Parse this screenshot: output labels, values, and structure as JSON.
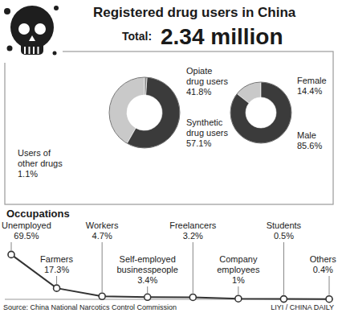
{
  "header": {
    "title": "Registered drug users in China",
    "total_label": "Total:",
    "total_value": "2.34 million"
  },
  "chart_data": [
    {
      "type": "pie",
      "categories": [
        "Opiate drug users",
        "Synthetic drug users",
        "Users of other drugs"
      ],
      "values": [
        41.8,
        57.1,
        1.1
      ],
      "value_labels": [
        "41.8%",
        "57.1%",
        "1.1%"
      ],
      "colors": [
        "#c9c9c9",
        "#3b3b3b",
        "#8c8c8c"
      ],
      "data_labels": true
    },
    {
      "type": "pie",
      "categories": [
        "Female",
        "Male"
      ],
      "values": [
        14.4,
        85.6
      ],
      "value_labels": [
        "14.4%",
        "85.6%"
      ],
      "colors": [
        "#c9c9c9",
        "#3b3b3b"
      ],
      "data_labels": true
    },
    {
      "type": "line",
      "title": "Occupations",
      "categories": [
        "Unemployed",
        "Farmers",
        "Workers",
        "Self-employed businesspeople",
        "Freelancers",
        "Company employees",
        "Students",
        "Others"
      ],
      "values": [
        69.5,
        17.3,
        4.7,
        3.4,
        3.2,
        1,
        0.5,
        0.4
      ],
      "value_labels": [
        "69.5%",
        "17.3%",
        "4.7%",
        "3.4%",
        "3.2%",
        "1%",
        "0.5%",
        "0.4%"
      ],
      "ylim": [
        0,
        75
      ],
      "tick_labels": false,
      "data_labels": true,
      "color": "#333333",
      "marker": "circle"
    }
  ],
  "footer": {
    "source": "Source: China National Narcotics Control Commission",
    "credit": "LIYI / CHINA DAILY"
  }
}
